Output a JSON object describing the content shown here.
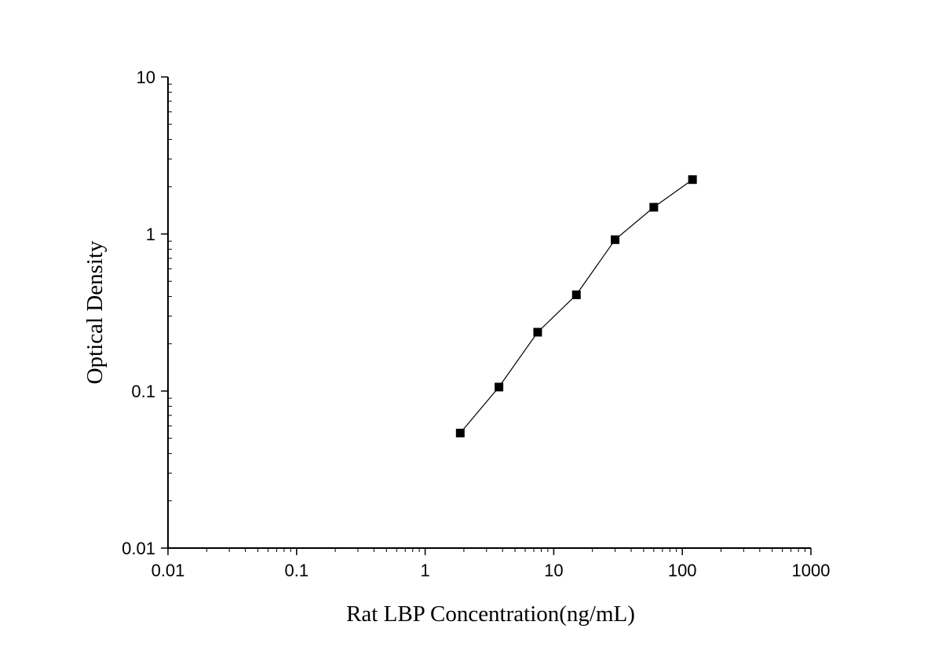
{
  "chart_data": {
    "type": "scatter",
    "title": "",
    "xlabel": "Rat LBP Concentration(ng/mL)",
    "ylabel": "Optical Density",
    "xscale": "log",
    "yscale": "log",
    "xlim": [
      0.01,
      1000
    ],
    "ylim": [
      0.01,
      10
    ],
    "x_ticks": [
      "0.01",
      "0.1",
      "1",
      "10",
      "100",
      "1000"
    ],
    "y_ticks": [
      "0.01",
      "0.1",
      "1",
      "10"
    ],
    "grid": false,
    "legend": "none",
    "marker": "filled-square",
    "connected_line": true,
    "series": [
      {
        "x": [
          1.875,
          3.75,
          7.5,
          15,
          30,
          60,
          120
        ],
        "y": [
          0.054,
          0.106,
          0.237,
          0.41,
          0.92,
          1.48,
          2.22
        ]
      }
    ],
    "colors": {
      "marker": "#000000",
      "line": "#000000",
      "axis": "#000000"
    }
  }
}
